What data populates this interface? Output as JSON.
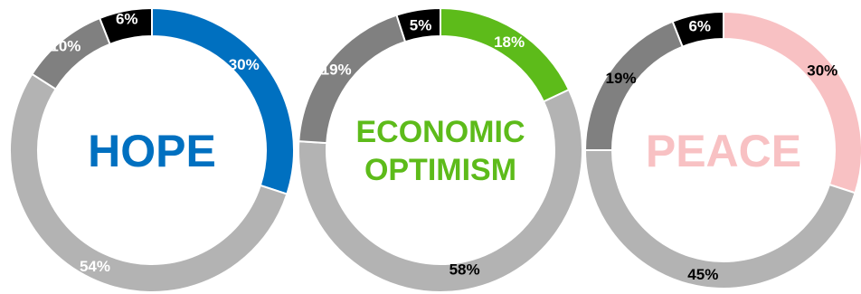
{
  "chart_data": [
    {
      "type": "pie",
      "variant": "donut",
      "center_label": [
        "HOPE"
      ],
      "accent_color": "#0070C0",
      "slices": [
        {
          "value": 30,
          "label": "30%",
          "color": "#0070C0"
        },
        {
          "value": 54,
          "label": "54%",
          "color": "#B3B3B3"
        },
        {
          "value": 10,
          "label": "10%",
          "color": "#808080"
        },
        {
          "value": 6,
          "label": "6%",
          "color": "#000000"
        }
      ]
    },
    {
      "type": "pie",
      "variant": "donut",
      "center_label": [
        "ECONOMIC",
        "OPTIMISM"
      ],
      "accent_color": "#5DBB1A",
      "slices": [
        {
          "value": 18,
          "label": "18%",
          "color": "#5DBB1A"
        },
        {
          "value": 58,
          "label": "58%",
          "color": "#B3B3B3"
        },
        {
          "value": 19,
          "label": "19%",
          "color": "#808080"
        },
        {
          "value": 5,
          "label": "5%",
          "color": "#000000"
        }
      ]
    },
    {
      "type": "pie",
      "variant": "donut",
      "center_label": [
        "PEACE"
      ],
      "accent_color": "#F8C1C3",
      "slices": [
        {
          "value": 30,
          "label": "30%",
          "color": "#F8C1C3"
        },
        {
          "value": 45,
          "label": "45%",
          "color": "#B3B3B3"
        },
        {
          "value": 19,
          "label": "19%",
          "color": "#808080"
        },
        {
          "value": 6,
          "label": "6%",
          "color": "#000000"
        }
      ]
    }
  ]
}
